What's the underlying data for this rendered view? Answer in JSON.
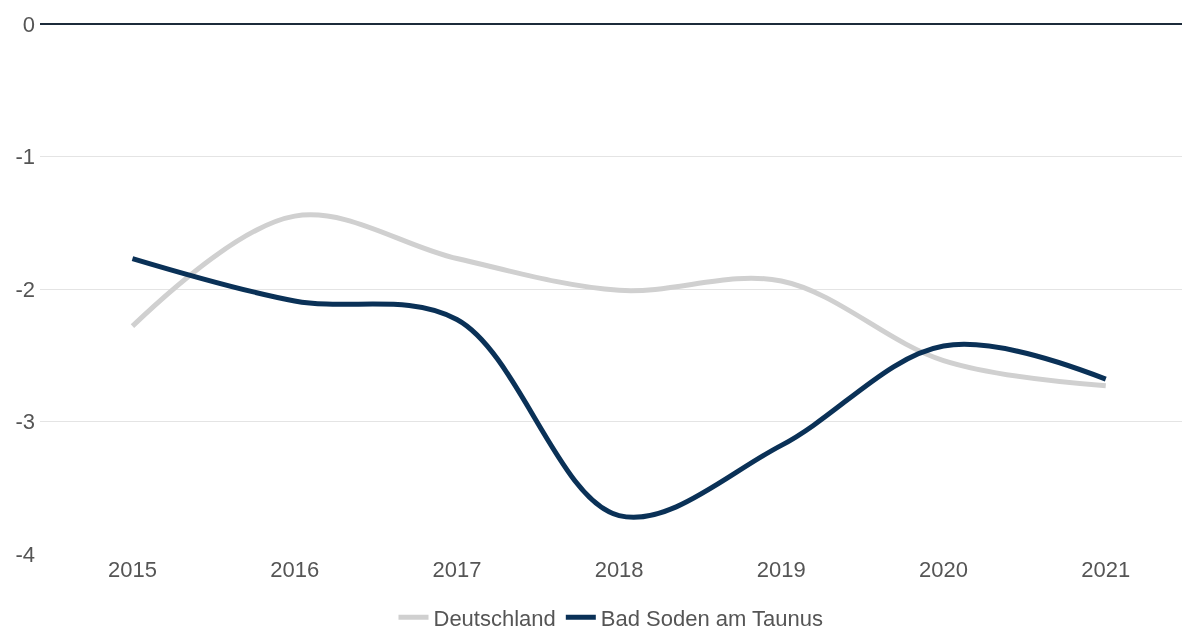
{
  "chart_data": {
    "type": "line",
    "x": [
      2015,
      2016,
      2017,
      2018,
      2019,
      2020,
      2021
    ],
    "series": [
      {
        "name": "Deutschland",
        "color": "#d0d0d0",
        "values": [
          -2.28,
          -1.45,
          -1.77,
          -2.01,
          -1.94,
          -2.54,
          -2.73
        ]
      },
      {
        "name": "Bad Soden am Taunus",
        "color": "#0a3157",
        "values": [
          -1.77,
          -2.09,
          -2.23,
          -3.71,
          -3.18,
          -2.43,
          -2.68
        ]
      }
    ],
    "xlim": [
      2014.43,
      2021.47
    ],
    "xticks": [
      2015,
      2016,
      2017,
      2018,
      2019,
      2020,
      2021
    ],
    "ylim": [
      -4,
      0
    ],
    "yticks": [
      -4,
      -3,
      -2,
      -1,
      0
    ],
    "grid": "y",
    "legend": "bottom",
    "marker": "none",
    "line_style": "solid"
  }
}
